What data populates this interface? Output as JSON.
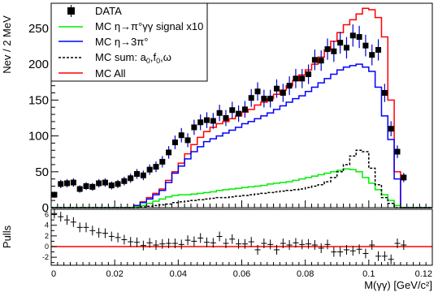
{
  "chart_data": [
    {
      "type": "line",
      "panel": "main",
      "ylabel": "Nev / 2 MeV",
      "xlim": [
        0,
        0.12
      ],
      "ylim": [
        0,
        285
      ],
      "x_ticks": [
        "0",
        "0.02",
        "0.04",
        "0.06",
        "0.08",
        "0.1"
      ],
      "y_ticks": [
        0,
        50,
        100,
        150,
        200,
        250
      ],
      "y_tick_labels": [
        "0",
        "50",
        "100",
        "150",
        "200",
        "250"
      ],
      "bin_edges": [
        0,
        0.002,
        0.004,
        0.006,
        0.008,
        0.01,
        0.012,
        0.014,
        0.016,
        0.018,
        0.02,
        0.022,
        0.024,
        0.026,
        0.028,
        0.03,
        0.032,
        0.034,
        0.036,
        0.038,
        0.04,
        0.042,
        0.044,
        0.046,
        0.048,
        0.05,
        0.052,
        0.054,
        0.056,
        0.058,
        0.06,
        0.062,
        0.064,
        0.066,
        0.068,
        0.07,
        0.072,
        0.074,
        0.076,
        0.078,
        0.08,
        0.082,
        0.084,
        0.086,
        0.088,
        0.09,
        0.092,
        0.094,
        0.096,
        0.098,
        0.1,
        0.102,
        0.104,
        0.106,
        0.108,
        0.11,
        0.112,
        0.114,
        0.116,
        0.118,
        0.12
      ],
      "legend": {
        "position": "top-left",
        "entries": [
          {
            "label": "DATA",
            "style": "marker",
            "color": "#000000"
          },
          {
            "label": "MC η→π°γγ signal x10",
            "style": "line",
            "color": "#00ee00"
          },
          {
            "label": "MC η→3π°",
            "style": "line",
            "color": "#0000ff"
          },
          {
            "label": "MC sum: a0,f0,ω",
            "label_main": "MC sum: a",
            "label_sub": [
              "0",
              "0"
            ],
            "label_sep": [
              ",f",
              ",ω"
            ],
            "style": "dashed",
            "color": "#000000"
          },
          {
            "label": "MC All",
            "style": "line",
            "color": "#ff0000"
          }
        ]
      },
      "series": [
        {
          "name": "DATA",
          "kind": "points",
          "color": "#000000",
          "error_color": "#0000cc",
          "x": [
            0.001,
            0.003,
            0.005,
            0.007,
            0.009,
            0.011,
            0.013,
            0.015,
            0.017,
            0.019,
            0.021,
            0.023,
            0.025,
            0.027,
            0.029,
            0.031,
            0.033,
            0.035,
            0.037,
            0.039,
            0.041,
            0.043,
            0.045,
            0.047,
            0.049,
            0.051,
            0.053,
            0.055,
            0.057,
            0.059,
            0.061,
            0.063,
            0.065,
            0.067,
            0.069,
            0.071,
            0.073,
            0.075,
            0.077,
            0.079,
            0.081,
            0.083,
            0.085,
            0.087,
            0.089,
            0.091,
            0.093,
            0.095,
            0.097,
            0.099,
            0.101,
            0.103,
            0.105,
            0.107,
            0.109,
            0.111
          ],
          "values": [
            18,
            33,
            34,
            35,
            26,
            30,
            29,
            34,
            35,
            31,
            33,
            37,
            41,
            47,
            45,
            53,
            57,
            64,
            77,
            91,
            101,
            94,
            112,
            119,
            122,
            121,
            132,
            125,
            136,
            131,
            137,
            153,
            162,
            152,
            152,
            166,
            160,
            170,
            180,
            180,
            186,
            206,
            205,
            221,
            218,
            230,
            223,
            240,
            238,
            226,
            213,
            220,
            160,
            110,
            78,
            42
          ]
        },
        {
          "name": "MC All",
          "kind": "step",
          "color": "#ff0000",
          "values": [
            0,
            0,
            0,
            0,
            0,
            0,
            0,
            0,
            0,
            0,
            0,
            0,
            0,
            3,
            8,
            14,
            20,
            26,
            38,
            50,
            62,
            75,
            88,
            98,
            106,
            112,
            117,
            120,
            124,
            128,
            133,
            137,
            143,
            147,
            152,
            158,
            164,
            170,
            177,
            185,
            192,
            200,
            210,
            220,
            232,
            244,
            255,
            262,
            270,
            278,
            276,
            265,
            238,
            150,
            50,
            0,
            0,
            0,
            0,
            0
          ]
        },
        {
          "name": "MC η→3π°",
          "kind": "step",
          "color": "#0000ff",
          "values": [
            0,
            0,
            0,
            0,
            0,
            0,
            0,
            0,
            0,
            0,
            0,
            0,
            0,
            3,
            7,
            12,
            18,
            24,
            35,
            48,
            58,
            68,
            78,
            85,
            92,
            96,
            100,
            104,
            108,
            112,
            117,
            120,
            124,
            128,
            132,
            137,
            142,
            147,
            152,
            156,
            162,
            168,
            174,
            180,
            186,
            192,
            196,
            198,
            200,
            196,
            190,
            168,
            128,
            95,
            40,
            0,
            0,
            0,
            0,
            0
          ]
        },
        {
          "name": "MC η→π°γγ signal x10",
          "kind": "step",
          "color": "#00ee00",
          "values": [
            0,
            0,
            0,
            0,
            0,
            0,
            0,
            0,
            0,
            0,
            0,
            0,
            0,
            1,
            3,
            6,
            9,
            12,
            15,
            17,
            18,
            18,
            19,
            20,
            21,
            22,
            24,
            25,
            26,
            27,
            28,
            29,
            30,
            31,
            33,
            34,
            35,
            36,
            38,
            40,
            42,
            44,
            46,
            48,
            50,
            52,
            54,
            53,
            50,
            42,
            34,
            25,
            18,
            10,
            3,
            0,
            0,
            0,
            0,
            0
          ]
        },
        {
          "name": "MC sum: a0,f0,ω",
          "kind": "step",
          "dashed": true,
          "color": "#000000",
          "values": [
            0,
            0,
            0,
            0,
            0,
            0,
            0,
            0,
            0,
            0,
            0,
            0,
            0,
            0,
            1,
            2,
            3,
            4,
            5,
            7,
            8,
            9,
            10,
            11,
            12,
            13,
            14,
            14,
            15,
            16,
            17,
            18,
            19,
            20,
            21,
            22,
            23,
            24,
            25,
            26,
            28,
            30,
            32,
            36,
            42,
            50,
            60,
            72,
            80,
            78,
            55,
            32,
            14,
            6,
            0,
            0,
            0,
            0,
            0,
            0
          ]
        }
      ]
    },
    {
      "type": "scatter",
      "panel": "pulls",
      "ylabel": "Pulls",
      "xlabel": "M(γγ) [GeV/c²]",
      "xlim": [
        0,
        0.12
      ],
      "ylim": [
        -3.5,
        7
      ],
      "x_ticks": [
        "0",
        "0.02",
        "0.04",
        "0.06",
        "0.08",
        "0.1",
        "0.12"
      ],
      "y_ticks": [
        -2,
        0,
        2,
        4,
        6
      ],
      "y_tick_labels": [
        "-2",
        "0",
        "2",
        "4",
        "6"
      ],
      "reference_line": {
        "y": 0,
        "color": "#ff0000"
      },
      "series": [
        {
          "name": "Pulls",
          "color": "#000000",
          "x": [
            0.001,
            0.003,
            0.005,
            0.007,
            0.009,
            0.011,
            0.013,
            0.015,
            0.017,
            0.019,
            0.021,
            0.023,
            0.025,
            0.027,
            0.029,
            0.031,
            0.033,
            0.035,
            0.037,
            0.039,
            0.041,
            0.043,
            0.045,
            0.047,
            0.049,
            0.051,
            0.053,
            0.055,
            0.057,
            0.059,
            0.061,
            0.063,
            0.065,
            0.067,
            0.069,
            0.071,
            0.073,
            0.075,
            0.077,
            0.079,
            0.081,
            0.083,
            0.085,
            0.087,
            0.089,
            0.091,
            0.093,
            0.095,
            0.097,
            0.099,
            0.101,
            0.103,
            0.105,
            0.107,
            0.109,
            0.111
          ],
          "values": [
            6.2,
            5.6,
            5.0,
            4.6,
            3.6,
            3.6,
            3.0,
            2.6,
            2.5,
            1.9,
            1.7,
            1.3,
            0.9,
            0.8,
            0.2,
            0.7,
            0.3,
            0.5,
            0.6,
            0.6,
            0.4,
            1.2,
            1.0,
            1.6,
            0.8,
            0.7,
            1.9,
            0.6,
            1.4,
            0.5,
            0.5,
            0.9,
            -0.6,
            0.6,
            0.4,
            -0.6,
            0.6,
            0.3,
            0.7,
            0.4,
            0.5,
            0.3,
            -0.3,
            0.4,
            -1.0,
            -1.0,
            -0.6,
            -0.8,
            -0.5,
            -1.3,
            0.3,
            -1.8,
            -1.8,
            -2.4,
            0.6,
            0.3
          ]
        }
      ]
    }
  ]
}
